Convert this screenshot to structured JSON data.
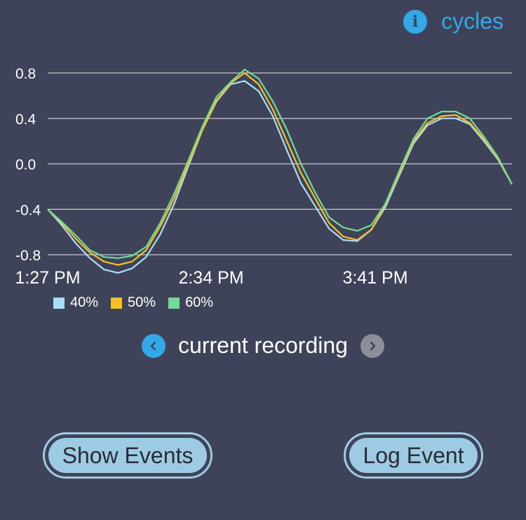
{
  "header": {
    "info_icon": "info-icon",
    "link_label": "cycles",
    "accent_color": "#33a8e8"
  },
  "chart_data": {
    "type": "line",
    "title": "",
    "xlabel": "",
    "ylabel": "",
    "ylim": [
      -0.8,
      0.8
    ],
    "y_ticks": [
      "0.8",
      "0.4",
      "0.0",
      "-0.4",
      "-0.8"
    ],
    "x_ticks": [
      "1:27 PM",
      "2:34 PM",
      "3:41 PM"
    ],
    "grid": true,
    "legend_position": "bottom-left",
    "series": [
      {
        "name": "40%",
        "color": "#a8def5",
        "values": [
          -0.4,
          -0.54,
          -0.7,
          -0.83,
          -0.93,
          -0.96,
          -0.92,
          -0.82,
          -0.62,
          -0.35,
          -0.02,
          0.3,
          0.55,
          0.7,
          0.73,
          0.64,
          0.42,
          0.12,
          -0.17,
          -0.37,
          -0.57,
          -0.67,
          -0.68,
          -0.58,
          -0.38,
          -0.1,
          0.18,
          0.34,
          0.4,
          0.4,
          0.35,
          0.2,
          0.04,
          -0.18
        ]
      },
      {
        "name": "50%",
        "color": "#f7c025",
        "values": [
          -0.4,
          -0.52,
          -0.66,
          -0.78,
          -0.86,
          -0.89,
          -0.86,
          -0.76,
          -0.55,
          -0.3,
          0.0,
          0.3,
          0.56,
          0.71,
          0.8,
          0.7,
          0.48,
          0.2,
          -0.08,
          -0.3,
          -0.52,
          -0.64,
          -0.67,
          -0.58,
          -0.36,
          -0.08,
          0.2,
          0.36,
          0.42,
          0.43,
          0.36,
          0.22,
          0.05,
          -0.18
        ]
      },
      {
        "name": "60%",
        "color": "#6fdc96",
        "values": [
          -0.4,
          -0.51,
          -0.63,
          -0.76,
          -0.82,
          -0.83,
          -0.81,
          -0.73,
          -0.52,
          -0.26,
          0.03,
          0.33,
          0.59,
          0.72,
          0.83,
          0.75,
          0.55,
          0.3,
          0.0,
          -0.25,
          -0.47,
          -0.56,
          -0.59,
          -0.54,
          -0.35,
          -0.06,
          0.22,
          0.4,
          0.46,
          0.46,
          0.4,
          0.24,
          0.06,
          -0.18
        ]
      }
    ]
  },
  "recording": {
    "label": "current recording",
    "prev_icon": "chevron-left-icon",
    "next_icon": "chevron-right-icon"
  },
  "actions": {
    "show_events": "Show Events",
    "log_event": "Log Event"
  }
}
